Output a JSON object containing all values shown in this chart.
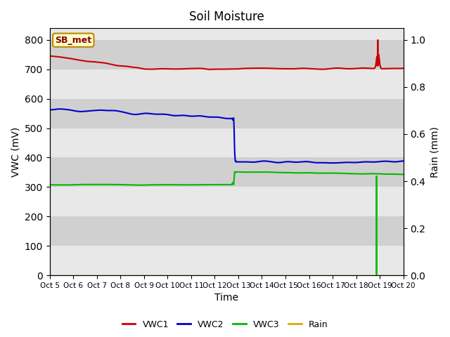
{
  "title": "Soil Moisture",
  "xlabel": "Time",
  "ylabel_left": "VWC (mV)",
  "ylabel_right": "Rain (mm)",
  "ylim_left": [
    0,
    840
  ],
  "ylim_right": [
    0.0,
    1.05
  ],
  "bg_light": "#e8e8e8",
  "bg_dark": "#d0d0d0",
  "station_label": "SB_met",
  "x_tick_labels": [
    "Oct 5",
    "Oct 6",
    "Oct 7",
    "Oct 8",
    "Oct 9",
    "Oct 10",
    "Oct 11",
    "Oct 12",
    "Oct 13",
    "Oct 14",
    "Oct 15",
    "Oct 16",
    "Oct 17",
    "Oct 18",
    "Oct 19",
    "Oct 20"
  ],
  "colors": {
    "VWC1": "#cc0000",
    "VWC2": "#0000cc",
    "VWC3": "#00bb00",
    "Rain": "#ddaa00"
  },
  "legend_entries": [
    "VWC1",
    "VWC2",
    "VWC3",
    "Rain"
  ],
  "yticks_left": [
    0,
    100,
    200,
    300,
    400,
    500,
    600,
    700,
    800
  ],
  "yticks_right": [
    0.0,
    0.2,
    0.4,
    0.6,
    0.8,
    1.0
  ]
}
